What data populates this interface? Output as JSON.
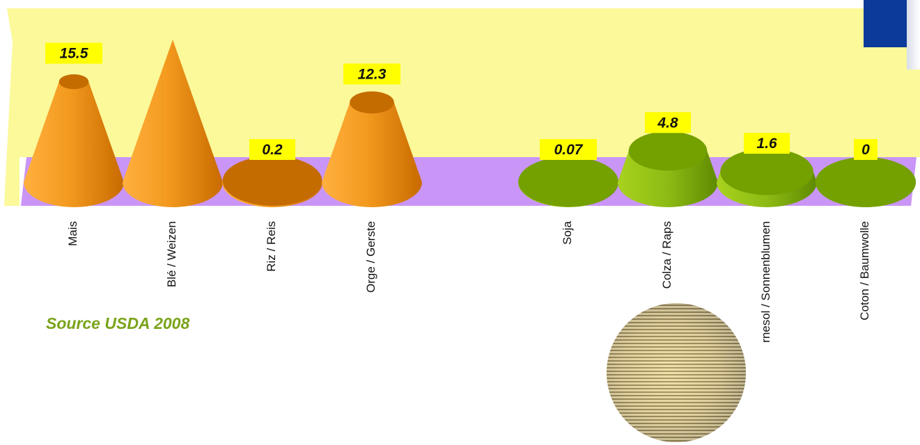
{
  "chart_data": {
    "type": "bar",
    "title": "",
    "xlabel": "",
    "ylabel": "",
    "categories": [
      "Mais",
      "Blé / Weizen",
      "Riz / Reis",
      "Orge / Gerste",
      "Soja",
      "Colza / Raps",
      "rnesol / Sonnenblumen",
      "Coton / Baumwolle"
    ],
    "series": [
      {
        "values": [
          15.5,
          22.0,
          0.2,
          12.3,
          0.07,
          4.8,
          1.6,
          0
        ]
      }
    ],
    "data_labels": [
      "15.5",
      "",
      "0.2",
      "12.3",
      "0.07",
      "4.8",
      "1.6",
      "0"
    ],
    "groups": [
      {
        "color": "#e8880f",
        "items": [
          0,
          1,
          2,
          3
        ]
      },
      {
        "color": "#7da21a",
        "items": [
          4,
          5,
          6,
          7
        ]
      }
    ],
    "legend": "none",
    "grid": false
  },
  "source": "Source USDA 2008",
  "colors": {
    "back_wall": "#fbf99a",
    "floor": "#c995f6",
    "label_box": "#ffff00",
    "orange": "#e8880f",
    "green": "#7da21a",
    "corner": "#0b3a9a"
  },
  "images": {
    "photo": "corn-cob-photo"
  }
}
